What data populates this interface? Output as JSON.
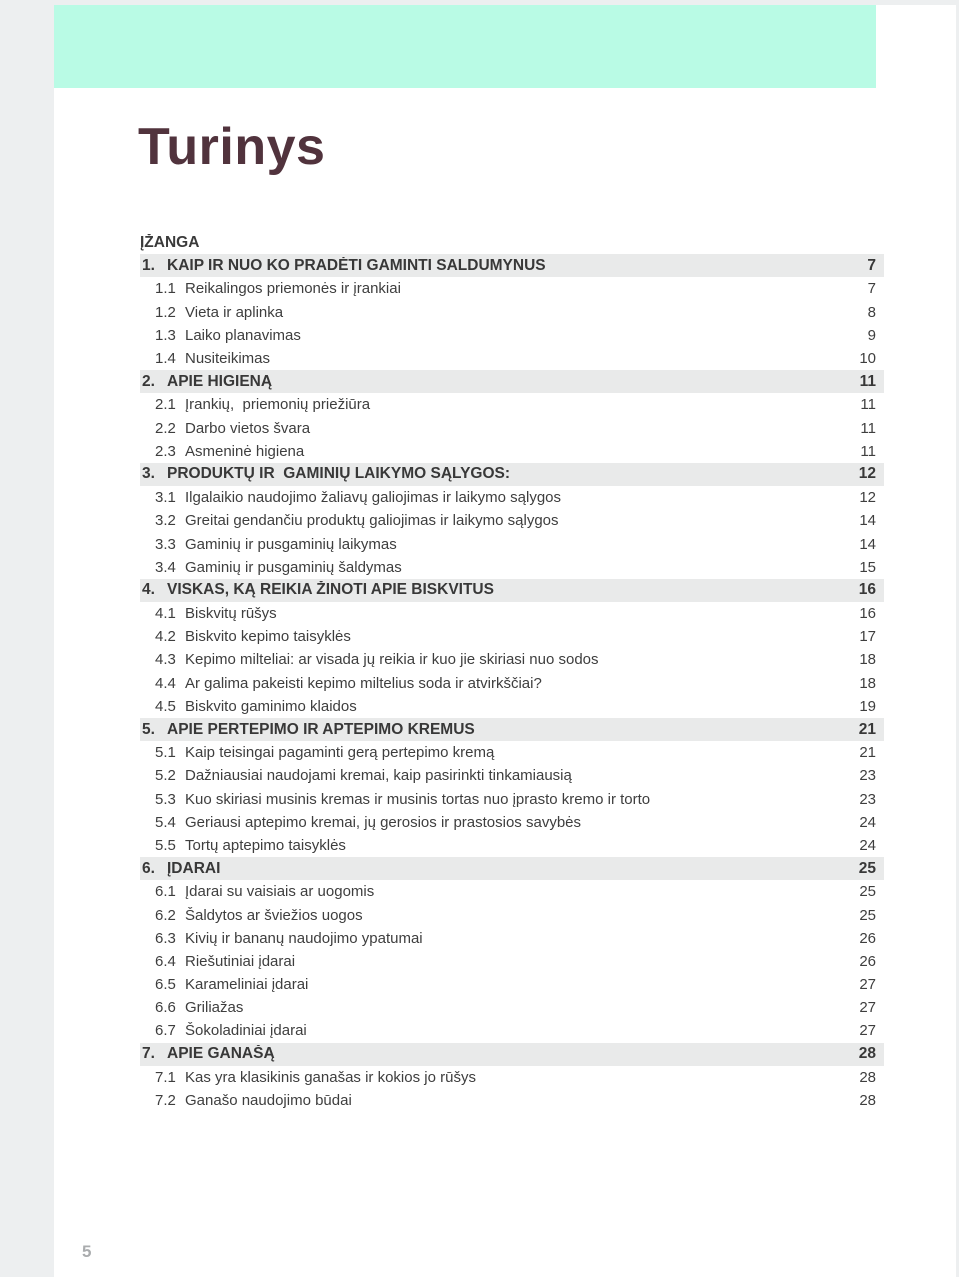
{
  "page": {
    "title": "Turinys",
    "folio": "5",
    "colors": {
      "accent_bar": "#b9fbe5",
      "title": "#51333d",
      "section_band": "#e9eaea",
      "margin_background": "#edeff0"
    },
    "toc": {
      "intro_label": "ĮŽANGA",
      "sections": [
        {
          "number": "1.",
          "title": "KAIP IR NUO KO PRADĖTI GAMINTI SALDUMYNUS",
          "page": "7",
          "items": [
            {
              "number": "1.1",
              "title": "Reikalingos priemonės ir įrankiai",
              "page": "7"
            },
            {
              "number": "1.2",
              "title": "Vieta ir aplinka",
              "page": "8"
            },
            {
              "number": "1.3",
              "title": "Laiko planavimas",
              "page": "9"
            },
            {
              "number": "1.4",
              "title": "Nusiteikimas",
              "page": "10"
            }
          ]
        },
        {
          "number": "2.",
          "title": "APIE HIGIENĄ",
          "page": "11",
          "items": [
            {
              "number": "2.1",
              "title": "Įrankių,  priemonių priežiūra",
              "page": "11"
            },
            {
              "number": "2.2",
              "title": "Darbo vietos švara",
              "page": "11"
            },
            {
              "number": "2.3",
              "title": "Asmeninė higiena",
              "page": "11"
            }
          ]
        },
        {
          "number": "3.",
          "title": "PRODUKTŲ IR  GAMINIŲ LAIKYMO SĄLYGOS:",
          "page": "12",
          "items": [
            {
              "number": "3.1",
              "title": "Ilgalaikio naudojimo žaliavų galiojimas ir laikymo sąlygos",
              "page": "12"
            },
            {
              "number": "3.2",
              "title": "Greitai gendančiu produktų galiojimas ir laikymo sąlygos",
              "page": "14"
            },
            {
              "number": "3.3",
              "title": "Gaminių ir pusgaminių laikymas",
              "page": "14"
            },
            {
              "number": "3.4",
              "title": "Gaminių ir pusgaminių šaldymas",
              "page": "15"
            }
          ]
        },
        {
          "number": "4.",
          "title": "VISKAS, KĄ REIKIA ŽINOTI APIE BISKVITUS",
          "page": "16",
          "items": [
            {
              "number": "4.1",
              "title": "Biskvitų rūšys",
              "page": "16"
            },
            {
              "number": "4.2",
              "title": "Biskvito kepimo taisyklės",
              "page": "17"
            },
            {
              "number": "4.3",
              "title": "Kepimo milteliai: ar visada jų reikia ir kuo jie skiriasi nuo sodos",
              "page": "18"
            },
            {
              "number": "4.4",
              "title": "Ar galima pakeisti kepimo miltelius soda ir atvirkščiai?",
              "page": "18"
            },
            {
              "number": "4.5",
              "title": "Biskvito gaminimo klaidos",
              "page": "19"
            }
          ]
        },
        {
          "number": "5.",
          "title": "APIE PERTEPIMO IR APTEPIMO KREMUS",
          "page": "21",
          "items": [
            {
              "number": "5.1",
              "title": "Kaip teisingai pagaminti gerą pertepimo kremą",
              "page": "21"
            },
            {
              "number": "5.2",
              "title": "Dažniausiai naudojami kremai, kaip pasirinkti tinkamiausią",
              "page": "23"
            },
            {
              "number": "5.3",
              "title": "Kuo skiriasi musinis kremas ir musinis tortas nuo įprasto kremo ir torto",
              "page": "23"
            },
            {
              "number": "5.4",
              "title": "Geriausi aptepimo kremai, jų gerosios ir prastosios savybės",
              "page": "24"
            },
            {
              "number": "5.5",
              "title": "Tortų aptepimo taisyklės",
              "page": "24"
            }
          ]
        },
        {
          "number": "6.",
          "title": "ĮDARAI",
          "page": "25",
          "items": [
            {
              "number": "6.1",
              "title": "Įdarai su vaisiais ar uogomis",
              "page": "25"
            },
            {
              "number": "6.2",
              "title": "Šaldytos ar šviežios uogos",
              "page": "25"
            },
            {
              "number": "6.3",
              "title": "Kivių ir bananų naudojimo ypatumai",
              "page": "26"
            },
            {
              "number": "6.4",
              "title": "Riešutiniai įdarai",
              "page": "26"
            },
            {
              "number": "6.5",
              "title": "Karameliniai įdarai",
              "page": "27"
            },
            {
              "number": "6.6",
              "title": "Griliažas",
              "page": "27"
            },
            {
              "number": "6.7",
              "title": "Šokoladiniai įdarai",
              "page": "27"
            }
          ]
        },
        {
          "number": "7.",
          "title": "APIE GANAŠĄ",
          "page": "28",
          "items": [
            {
              "number": "7.1",
              "title": "Kas yra klasikinis ganašas ir kokios jo rūšys",
              "page": "28"
            },
            {
              "number": "7.2",
              "title": "Ganašo naudojimo būdai",
              "page": "28"
            }
          ]
        }
      ]
    }
  }
}
